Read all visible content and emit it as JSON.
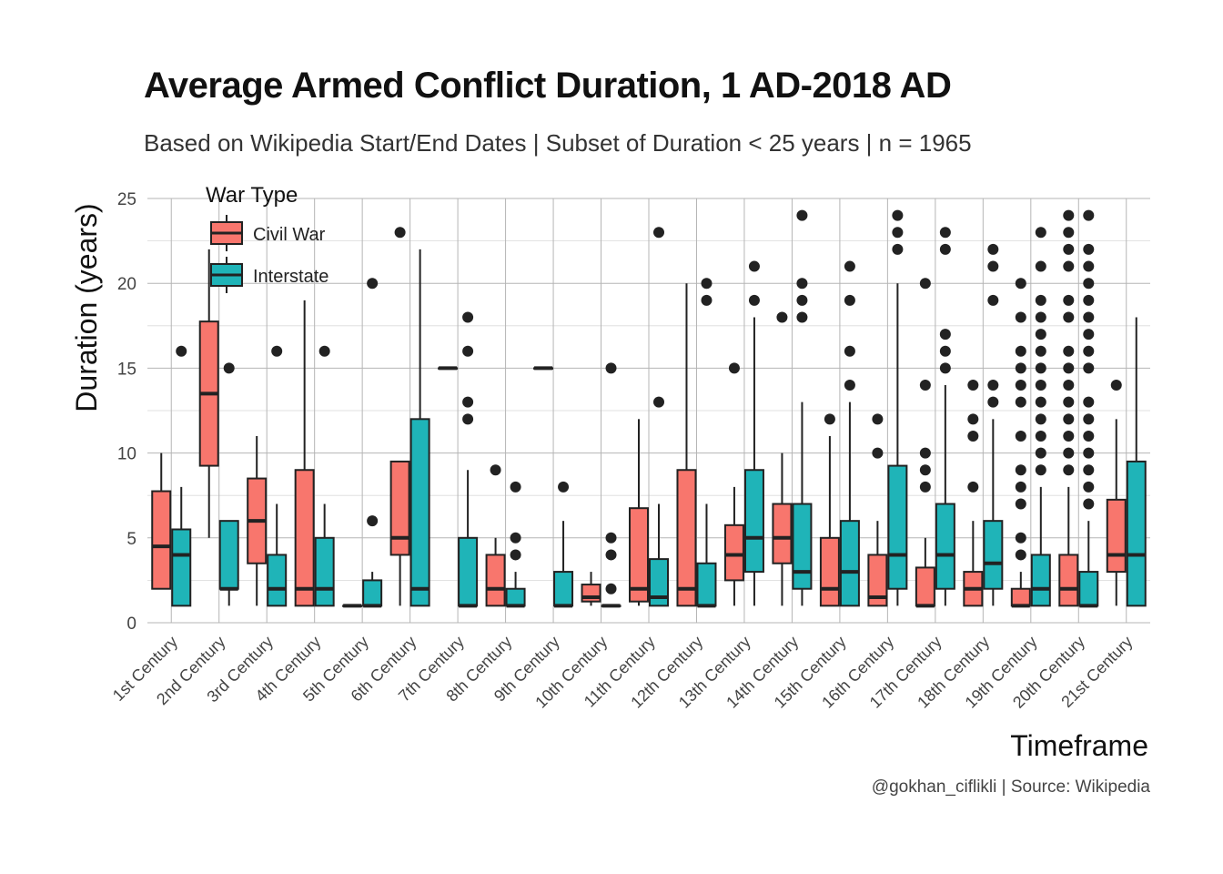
{
  "chart_data": {
    "type": "boxplot",
    "title": "Average Armed Conflict Duration, 1 AD-2018 AD",
    "subtitle": "Based on Wikipedia Start/End Dates | Subset of Duration < 25 years | n = 1965",
    "xlabel": "Timeframe",
    "ylabel": "Duration (years)",
    "caption": "@gokhan_ciflikli | Source: Wikipedia",
    "ylim": [
      0,
      25
    ],
    "yticks": [
      0,
      5,
      10,
      15,
      20,
      25
    ],
    "grid": true,
    "legend": {
      "title": "War Type",
      "position": "top-left"
    },
    "categories": [
      "1st Century",
      "2nd Century",
      "3rd Century",
      "4th Century",
      "5th Century",
      "6th Century",
      "7th Century",
      "8th Century",
      "9th Century",
      "10th Century",
      "11th Century",
      "12th Century",
      "13th Century",
      "14th Century",
      "15th Century",
      "16th Century",
      "17th Century",
      "18th Century",
      "19th Century",
      "20th Century",
      "21st Century"
    ],
    "series": [
      {
        "name": "Civil War",
        "color": "#F8766D",
        "boxes": [
          {
            "cat": "1st Century",
            "q1": 2,
            "median": 4.5,
            "q3": 7.75,
            "low": 2,
            "high": 10,
            "outliers": []
          },
          {
            "cat": "2nd Century",
            "q1": 9.25,
            "median": 13.5,
            "q3": 17.75,
            "low": 5,
            "high": 22,
            "outliers": []
          },
          {
            "cat": "3rd Century",
            "q1": 3.5,
            "median": 6,
            "q3": 8.5,
            "low": 1,
            "high": 11,
            "outliers": []
          },
          {
            "cat": "4th Century",
            "q1": 1,
            "median": 2,
            "q3": 9,
            "low": 1,
            "high": 19,
            "outliers": []
          },
          {
            "cat": "5th Century",
            "q1": 1,
            "median": 1,
            "q3": 1,
            "low": 1,
            "high": 1,
            "outliers": []
          },
          {
            "cat": "6th Century",
            "q1": 4,
            "median": 5,
            "q3": 9.5,
            "low": 1,
            "high": 9.5,
            "outliers": [
              23
            ]
          },
          {
            "cat": "7th Century",
            "q1": 15,
            "median": 15,
            "q3": 15,
            "low": 15,
            "high": 15,
            "outliers": []
          },
          {
            "cat": "8th Century",
            "q1": 1,
            "median": 2,
            "q3": 4,
            "low": 1,
            "high": 5,
            "outliers": [
              9
            ]
          },
          {
            "cat": "9th Century",
            "q1": 15,
            "median": 15,
            "q3": 15,
            "low": 15,
            "high": 15,
            "outliers": []
          },
          {
            "cat": "10th Century",
            "q1": 1.25,
            "median": 1.5,
            "q3": 2.25,
            "low": 1,
            "high": 3,
            "outliers": []
          },
          {
            "cat": "11th Century",
            "q1": 1.25,
            "median": 2,
            "q3": 6.75,
            "low": 1,
            "high": 12,
            "outliers": []
          },
          {
            "cat": "12th Century",
            "q1": 1,
            "median": 2,
            "q3": 9,
            "low": 1,
            "high": 20,
            "outliers": []
          },
          {
            "cat": "13th Century",
            "q1": 2.5,
            "median": 4,
            "q3": 5.75,
            "low": 1,
            "high": 8,
            "outliers": [
              15
            ]
          },
          {
            "cat": "14th Century",
            "q1": 3.5,
            "median": 5,
            "q3": 7,
            "low": 1,
            "high": 10,
            "outliers": [
              18
            ]
          },
          {
            "cat": "15th Century",
            "q1": 1,
            "median": 2,
            "q3": 5,
            "low": 1,
            "high": 11,
            "outliers": [
              12
            ]
          },
          {
            "cat": "16th Century",
            "q1": 1,
            "median": 1.5,
            "q3": 4,
            "low": 1,
            "high": 6,
            "outliers": [
              10,
              12
            ]
          },
          {
            "cat": "17th Century",
            "q1": 1,
            "median": 1,
            "q3": 3.25,
            "low": 1,
            "high": 5,
            "outliers": [
              8,
              9,
              10,
              14,
              20
            ]
          },
          {
            "cat": "18th Century",
            "q1": 1,
            "median": 2,
            "q3": 3,
            "low": 1,
            "high": 6,
            "outliers": [
              8,
              11,
              12,
              14
            ]
          },
          {
            "cat": "19th Century",
            "q1": 1,
            "median": 1,
            "q3": 2,
            "low": 1,
            "high": 3,
            "outliers": [
              4,
              5,
              7,
              8,
              9,
              11,
              13,
              14,
              15,
              16,
              18,
              20
            ]
          },
          {
            "cat": "20th Century",
            "q1": 1,
            "median": 2,
            "q3": 4,
            "low": 1,
            "high": 8,
            "outliers": [
              9,
              10,
              11,
              12,
              13,
              14,
              15,
              16,
              18,
              19,
              21,
              22,
              23,
              24
            ]
          },
          {
            "cat": "21st Century",
            "q1": 3,
            "median": 4,
            "q3": 7.25,
            "low": 1,
            "high": 12,
            "outliers": [
              14
            ]
          }
        ]
      },
      {
        "name": "Interstate",
        "color": "#1FB4B8",
        "boxes": [
          {
            "cat": "1st Century",
            "q1": 1,
            "median": 4,
            "q3": 5.5,
            "low": 1,
            "high": 8,
            "outliers": [
              16
            ]
          },
          {
            "cat": "2nd Century",
            "q1": 2,
            "median": 2,
            "q3": 6,
            "low": 1,
            "high": 6,
            "outliers": [
              15
            ]
          },
          {
            "cat": "3rd Century",
            "q1": 1,
            "median": 2,
            "q3": 4,
            "low": 1,
            "high": 7,
            "outliers": [
              16
            ]
          },
          {
            "cat": "4th Century",
            "q1": 1,
            "median": 2,
            "q3": 5,
            "low": 1,
            "high": 7,
            "outliers": [
              16
            ]
          },
          {
            "cat": "5th Century",
            "q1": 1,
            "median": 1,
            "q3": 2.5,
            "low": 1,
            "high": 3,
            "outliers": [
              6,
              20
            ]
          },
          {
            "cat": "6th Century",
            "q1": 1,
            "median": 2,
            "q3": 12,
            "low": 1,
            "high": 22,
            "outliers": []
          },
          {
            "cat": "7th Century",
            "q1": 1,
            "median": 1,
            "q3": 5,
            "low": 1,
            "high": 9,
            "outliers": [
              12,
              13,
              16,
              18
            ]
          },
          {
            "cat": "8th Century",
            "q1": 1,
            "median": 1,
            "q3": 2,
            "low": 1,
            "high": 3,
            "outliers": [
              4,
              5,
              8
            ]
          },
          {
            "cat": "9th Century",
            "q1": 1,
            "median": 1,
            "q3": 3,
            "low": 1,
            "high": 6,
            "outliers": [
              8
            ]
          },
          {
            "cat": "10th Century",
            "q1": 1,
            "median": 1,
            "q3": 1,
            "low": 1,
            "high": 1,
            "outliers": [
              2,
              4,
              5,
              15
            ]
          },
          {
            "cat": "11th Century",
            "q1": 1,
            "median": 1.5,
            "q3": 3.75,
            "low": 1,
            "high": 7,
            "outliers": [
              13,
              23
            ]
          },
          {
            "cat": "12th Century",
            "q1": 1,
            "median": 1,
            "q3": 3.5,
            "low": 1,
            "high": 7,
            "outliers": [
              19,
              20
            ]
          },
          {
            "cat": "13th Century",
            "q1": 3,
            "median": 5,
            "q3": 9,
            "low": 1,
            "high": 18,
            "outliers": [
              19,
              21
            ]
          },
          {
            "cat": "14th Century",
            "q1": 2,
            "median": 3,
            "q3": 7,
            "low": 1,
            "high": 13,
            "outliers": [
              18,
              19,
              20,
              24
            ]
          },
          {
            "cat": "15th Century",
            "q1": 1,
            "median": 3,
            "q3": 6,
            "low": 1,
            "high": 13,
            "outliers": [
              14,
              16,
              19,
              21
            ]
          },
          {
            "cat": "16th Century",
            "q1": 2,
            "median": 4,
            "q3": 9.25,
            "low": 1,
            "high": 20,
            "outliers": [
              22,
              23,
              24
            ]
          },
          {
            "cat": "17th Century",
            "q1": 2,
            "median": 4,
            "q3": 7,
            "low": 1,
            "high": 14,
            "outliers": [
              15,
              16,
              17,
              22,
              23
            ]
          },
          {
            "cat": "18th Century",
            "q1": 2,
            "median": 3.5,
            "q3": 6,
            "low": 1,
            "high": 12,
            "outliers": [
              13,
              14,
              19,
              21,
              22
            ]
          },
          {
            "cat": "19th Century",
            "q1": 1,
            "median": 2,
            "q3": 4,
            "low": 1,
            "high": 8,
            "outliers": [
              9,
              10,
              11,
              12,
              13,
              14,
              15,
              16,
              17,
              18,
              19,
              21,
              23
            ]
          },
          {
            "cat": "20th Century",
            "q1": 1,
            "median": 1,
            "q3": 3,
            "low": 1,
            "high": 6,
            "outliers": [
              7,
              8,
              9,
              10,
              11,
              12,
              13,
              15,
              16,
              17,
              18,
              19,
              20,
              21,
              22,
              24
            ]
          },
          {
            "cat": "21st Century",
            "q1": 1,
            "median": 4,
            "q3": 9.5,
            "low": 1,
            "high": 18,
            "outliers": []
          }
        ]
      }
    ]
  }
}
